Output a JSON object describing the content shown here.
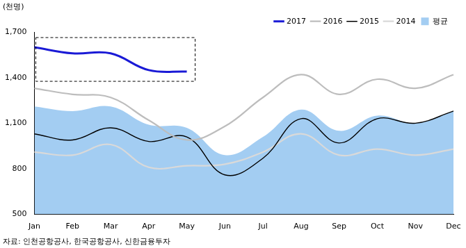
{
  "chart_data": {
    "type": "line",
    "y_label": "(천명)",
    "source": "자료: 인천공항공사, 한국공항공사, 신한금융투자",
    "categories": [
      "Jan",
      "Feb",
      "Mar",
      "Apr",
      "May",
      "Jun",
      "Jul",
      "Aug",
      "Sep",
      "Oct",
      "Nov",
      "Dec"
    ],
    "series": [
      {
        "name": "평균",
        "type": "area",
        "color": "#a3cdf2",
        "values": [
          1210,
          1180,
          1210,
          1090,
          1070,
          890,
          1010,
          1190,
          1050,
          1150,
          1100,
          1180
        ]
      },
      {
        "name": "2017",
        "type": "line",
        "color": "#1a1ad6",
        "values": [
          1600,
          1560,
          1560,
          1450,
          1440,
          null,
          null,
          null,
          null,
          null,
          null,
          null
        ]
      },
      {
        "name": "2016",
        "type": "line",
        "color": "#bdbdbd",
        "values": [
          1330,
          1290,
          1270,
          1120,
          990,
          1080,
          1270,
          1420,
          1290,
          1390,
          1330,
          1420
        ]
      },
      {
        "name": "2015",
        "type": "line",
        "color": "#000000",
        "values": [
          1030,
          990,
          1070,
          980,
          1010,
          760,
          870,
          1130,
          970,
          1130,
          1100,
          1180
        ]
      },
      {
        "name": "2014",
        "type": "line",
        "color": "#d9d9d9",
        "values": [
          910,
          890,
          960,
          810,
          820,
          830,
          910,
          1030,
          890,
          930,
          890,
          930
        ]
      }
    ],
    "ylim": [
      500,
      1700
    ],
    "yticks": [
      500,
      800,
      {
        "value": 1100,
        "label": "1,100"
      },
      {
        "value": 1400,
        "label": "1,400"
      },
      {
        "value": 1700,
        "label": "1,700"
      }
    ],
    "grid": false,
    "legend": "top right"
  }
}
